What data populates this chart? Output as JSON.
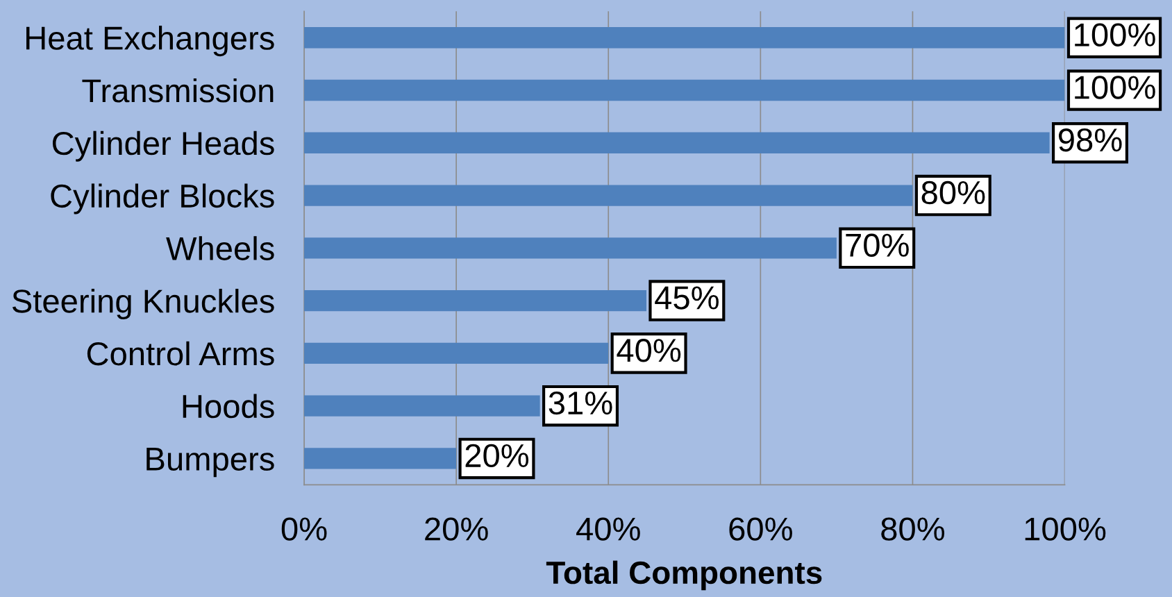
{
  "chart_data": {
    "type": "bar",
    "orientation": "horizontal",
    "categories": [
      "Heat Exchangers",
      "Transmission",
      "Cylinder Heads",
      "Cylinder Blocks",
      "Wheels",
      "Steering Knuckles",
      "Control Arms",
      "Hoods",
      "Bumpers"
    ],
    "values": [
      100,
      100,
      98,
      80,
      70,
      45,
      40,
      31,
      20
    ],
    "value_labels": [
      "100%",
      "100%",
      "98%",
      "80%",
      "70%",
      "45%",
      "40%",
      "31%",
      "20%"
    ],
    "color": "#4f81bd",
    "xlim": [
      0,
      100
    ],
    "xticks": [
      {
        "value": 0,
        "label": "0%"
      },
      {
        "value": 20,
        "label": "20%"
      },
      {
        "value": 40,
        "label": "40%"
      },
      {
        "value": 60,
        "label": "60%"
      },
      {
        "value": 80,
        "label": "80%"
      },
      {
        "value": 100,
        "label": "100%"
      }
    ],
    "xlabel": "Total Components",
    "grid": "x"
  }
}
